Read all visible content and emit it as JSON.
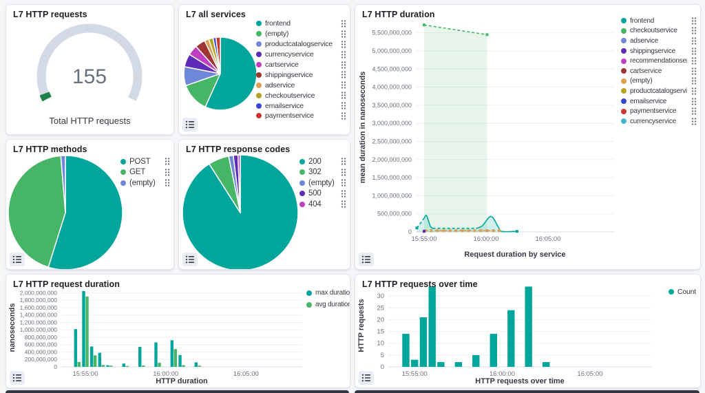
{
  "panels": {
    "gauge": {
      "title": "L7 HTTP requests",
      "value": "155",
      "caption": "Total HTTP requests"
    },
    "services": {
      "title": "L7 all services"
    },
    "duration": {
      "title": "L7 HTTP duration"
    },
    "methods": {
      "title": "L7 HTTP methods"
    },
    "codes": {
      "title": "L7 HTTP response codes"
    },
    "reqduration": {
      "title": "L7 HTTP request duration"
    },
    "overtime": {
      "title": "L7 HTTP requests over time"
    }
  },
  "colors": {
    "teal": "#00A69B",
    "green": "#46B566",
    "periwinkle": "#6F87D8",
    "purple": "#5E2BB8",
    "magenta": "#BF3FBF",
    "darkred": "#9E3533",
    "orange": "#DC9E53",
    "olive": "#B3A322",
    "blue": "#3846CF",
    "red": "#CB392E",
    "cyan": "#45B6C9",
    "gauge_track": "#D3DAE6",
    "gauge_fill": "#1D8348",
    "grid": "#EDEFF3",
    "baseline": "#D3DAE6",
    "axis_text": "#69707D",
    "axis_title": "#343741"
  },
  "chart_data": [
    {
      "panel": "gauge",
      "type": "gauge",
      "value": "155",
      "caption": "Total HTTP requests",
      "fraction": 0.03,
      "track_color": "#D3DAE6",
      "fill_color": "#1D8348"
    },
    {
      "panel": "services",
      "type": "pie",
      "title": "L7 all services",
      "legend_actions": true,
      "slices": [
        {
          "label": "frontend",
          "value": 88,
          "color": "#00A69B"
        },
        {
          "label": "(empty)",
          "value": 20,
          "color": "#46B566"
        },
        {
          "label": "productcatalogservice",
          "value": 13,
          "color": "#6F87D8"
        },
        {
          "label": "currencyservice",
          "value": 9,
          "color": "#5E2BB8"
        },
        {
          "label": "cartservice",
          "value": 7,
          "color": "#BF3FBF"
        },
        {
          "label": "shippingservice",
          "value": 7,
          "color": "#9E3533"
        },
        {
          "label": "adservice",
          "value": 3,
          "color": "#DC9E53"
        },
        {
          "label": "checkoutservice",
          "value": 3,
          "color": "#B3A322"
        },
        {
          "label": "emailservice",
          "value": 2,
          "color": "#3846CF"
        },
        {
          "label": "paymentservice",
          "value": 3,
          "color": "#CB392E"
        }
      ]
    },
    {
      "panel": "methods",
      "type": "pie",
      "title": "L7 HTTP methods",
      "legend_actions": true,
      "slices": [
        {
          "label": "POST",
          "value": 85,
          "color": "#00A69B"
        },
        {
          "label": "GET",
          "value": 68,
          "color": "#46B566"
        },
        {
          "label": "(empty)",
          "value": 2,
          "color": "#6F87D8"
        }
      ]
    },
    {
      "panel": "codes",
      "type": "pie",
      "title": "L7 HTTP response codes",
      "legend_actions": true,
      "slices": [
        {
          "label": "200",
          "value": 141,
          "color": "#00A69B"
        },
        {
          "label": "302",
          "value": 9,
          "color": "#46B566"
        },
        {
          "label": "(empty)",
          "value": 2,
          "color": "#6F87D8"
        },
        {
          "label": "500",
          "value": 2,
          "color": "#5E2BB8"
        },
        {
          "label": "404",
          "value": 1,
          "color": "#BF3FBF"
        }
      ]
    },
    {
      "panel": "duration",
      "type": "area",
      "title": "L7 HTTP duration",
      "legend_actions": true,
      "ylabel": "mean duration in nanoseconds",
      "xlabel": "Request duration by service",
      "y_max": 5780000000,
      "y_tick_step": 500000000,
      "x_domain": [
        "15:54:20",
        "16:10:20"
      ],
      "x_ticks": [
        "15:55:00",
        "16:00:00",
        "16:05:00"
      ],
      "legend": [
        {
          "label": "frontend",
          "color": "#00A69B"
        },
        {
          "label": "checkoutservice",
          "color": "#46B566"
        },
        {
          "label": "adservice",
          "color": "#6F87D8"
        },
        {
          "label": "shippingservice",
          "color": "#5E2BB8"
        },
        {
          "label": "recommendationservice",
          "color": "#BF3FBF"
        },
        {
          "label": "cartservice",
          "color": "#9E3533"
        },
        {
          "label": "(empty)",
          "color": "#DC9E53"
        },
        {
          "label": "productcatalogservice",
          "color": "#B3A322"
        },
        {
          "label": "emailservice",
          "color": "#3846CF"
        },
        {
          "label": "paymentservice",
          "color": "#CB392E"
        },
        {
          "label": "currencyservice",
          "color": "#45B6C9"
        }
      ],
      "series": [
        {
          "name": "checkoutservice",
          "color": "#46B566",
          "dash": true,
          "fill_opacity": 0.13,
          "markers": "ends",
          "points": [
            [
              "15:55:00",
              5720000000
            ],
            [
              "16:00:05",
              5450000000
            ]
          ]
        },
        {
          "name": "frontend",
          "color": "#00A69B",
          "fill_opacity": 0.18,
          "markers": "ends",
          "segments": [
            {
              "dash": true,
              "points": [
                [
                  "15:54:25",
                  110000000
                ],
                [
                  "15:55:00",
                  380000000
                ]
              ]
            },
            {
              "dash": false,
              "points": [
                [
                  "15:55:00",
                  380000000
                ],
                [
                  "15:55:12",
                  450000000
                ],
                [
                  "15:55:30",
                  160000000
                ],
                [
                  "15:55:42",
                  100000000
                ]
              ]
            },
            {
              "dash": true,
              "points": [
                [
                  "15:55:42",
                  100000000
                ],
                [
                  "15:59:12",
                  100000000
                ]
              ]
            },
            {
              "dash": false,
              "points": [
                [
                  "15:59:12",
                  100000000
                ],
                [
                  "15:59:42",
                  170000000
                ],
                [
                  "16:00:24",
                  430000000
                ],
                [
                  "16:01:00",
                  130000000
                ],
                [
                  "16:01:15",
                  15000000
                ],
                [
                  "16:02:30",
                  15000000
                ]
              ]
            }
          ]
        },
        {
          "name": "(empty)",
          "color": "#DC9E53",
          "dash": true,
          "markers": "interval",
          "points": [
            [
              "15:55:05",
              35000000
            ],
            [
              "16:01:05",
              35000000
            ]
          ]
        },
        {
          "name": "shippingservice",
          "color": "#5E2BB8",
          "markers": "point",
          "points": [
            [
              "15:55:00",
              18000000
            ]
          ]
        }
      ]
    },
    {
      "panel": "reqduration",
      "type": "bar",
      "title": "L7 HTTP request duration",
      "ylabel": "nanoseconds",
      "xlabel": "HTTP duration",
      "y_max": 2120000000,
      "y_tick_step": 200000000,
      "x_domain": [
        "15:53:30",
        "16:08:30"
      ],
      "x_ticks": [
        "15:55:00",
        "16:00:00",
        "16:05:00"
      ],
      "categories": [
        "15:54:30",
        "15:55:00",
        "15:55:30",
        "15:56:00",
        "15:56:30",
        "15:57:00",
        "15:57:30",
        "15:58:00",
        "15:58:30",
        "15:59:00",
        "15:59:30",
        "16:00:00",
        "16:00:30",
        "16:01:00",
        "16:01:30",
        "16:02:00",
        "16:02:30"
      ],
      "series": [
        {
          "name": "max duration",
          "color": "#00A69B",
          "values": [
            1020000000,
            2050000000,
            550000000,
            380000000,
            45000000,
            0,
            90000000,
            0,
            540000000,
            0,
            660000000,
            0,
            720000000,
            320000000,
            0,
            120000000,
            0
          ]
        },
        {
          "name": "avg duration",
          "color": "#46B566",
          "values": [
            130000000,
            1900000000,
            310000000,
            50000000,
            30000000,
            0,
            25000000,
            0,
            35000000,
            0,
            110000000,
            0,
            480000000,
            45000000,
            0,
            30000000,
            0
          ]
        }
      ]
    },
    {
      "panel": "overtime",
      "type": "bar",
      "title": "L7 HTTP requests over time",
      "ylabel": "HTTP requests",
      "xlabel": "HTTP requests over time",
      "y_max": 35,
      "y_tick_step": 5,
      "x_domain": [
        "15:53:30",
        "16:08:30"
      ],
      "x_ticks": [
        "15:55:00",
        "16:00:00",
        "16:05:00"
      ],
      "categories": [
        "15:54:30",
        "15:55:00",
        "15:55:30",
        "15:56:00",
        "15:56:30",
        "15:57:00",
        "15:57:30",
        "15:58:00",
        "15:58:30",
        "15:59:00",
        "15:59:30",
        "16:00:00",
        "16:00:30",
        "16:01:00",
        "16:01:30",
        "16:02:00",
        "16:02:30"
      ],
      "series": [
        {
          "name": "Count",
          "color": "#00A69B",
          "values": [
            14,
            3,
            21,
            34,
            2,
            0,
            2,
            0,
            5,
            0,
            14,
            0,
            24,
            0,
            34,
            0,
            2
          ]
        }
      ]
    }
  ]
}
